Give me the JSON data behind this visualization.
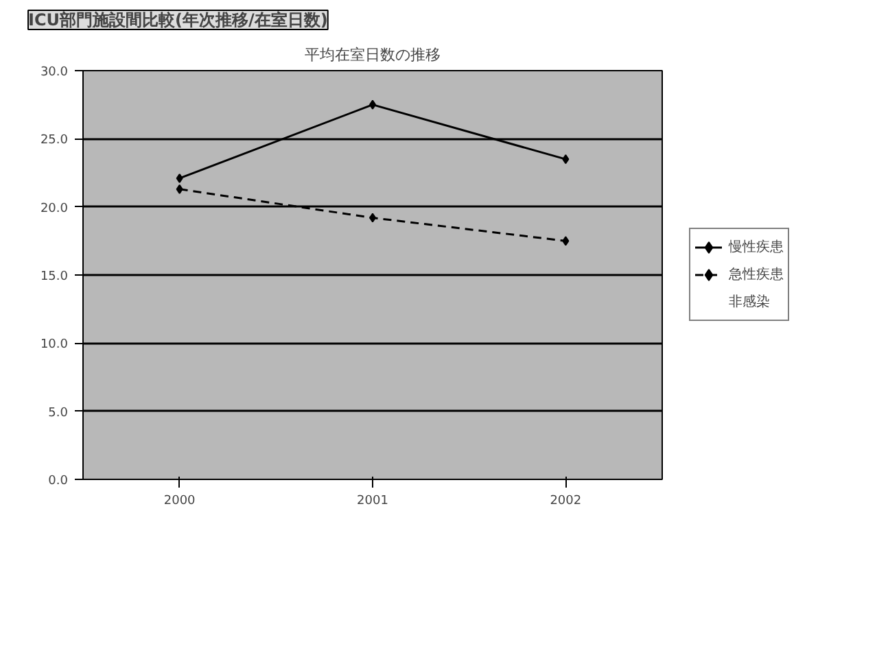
{
  "chart_data": {
    "type": "line",
    "title": "ICU部門施設間比較(年次推移/在室日数)",
    "subtitle": "平均在室日数の推移",
    "categories": [
      "2000",
      "2001",
      "2002"
    ],
    "series": [
      {
        "name": "慢性疾患",
        "color": "#000000",
        "values": [
          22.1,
          27.5,
          23.5
        ],
        "line_style": "solid"
      },
      {
        "name": "急性疾患",
        "color": "#000000",
        "values": [
          21.3,
          19.2,
          17.5
        ],
        "line_style": "dashed"
      },
      {
        "name": "非感染",
        "values": [
          null,
          null,
          null
        ]
      }
    ],
    "ylim": [
      0,
      30
    ],
    "yticks": [
      {
        "value": 0,
        "label": "0.0"
      },
      {
        "value": 5,
        "label": "5.0"
      },
      {
        "value": 10,
        "label": "10.0"
      },
      {
        "value": 15,
        "label": "15.0"
      },
      {
        "value": 20,
        "label": "20.0"
      },
      {
        "value": 25,
        "label": "25.0"
      },
      {
        "value": 30,
        "label": "30.0"
      }
    ],
    "grid": "y",
    "legend": "right",
    "marker": "diamond"
  }
}
